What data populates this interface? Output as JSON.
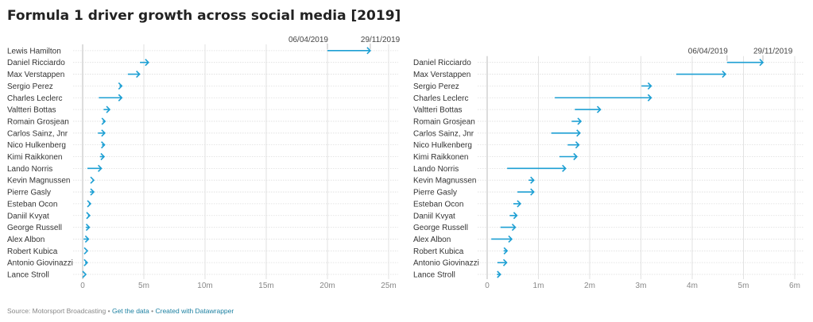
{
  "title": "Formula 1 driver growth across social media [2019]",
  "footer": {
    "source": "Source: Motorsport Broadcasting",
    "sep": " • ",
    "get_data": "Get the data",
    "created": "Created with Datawrapper"
  },
  "colors": {
    "arrow": "#1d9fd3",
    "grid": "#e2e2e2",
    "text": "#333333"
  },
  "chart_data": [
    {
      "type": "arrow",
      "xlim": [
        0,
        25
      ],
      "ticks": [
        0,
        5,
        10,
        15,
        20,
        25
      ],
      "tick_labels": [
        "0",
        "5m",
        "10m",
        "15m",
        "20m",
        "25m"
      ],
      "start_label": "06/04/2019",
      "end_label": "29/11/2019",
      "grid": true,
      "categories": [
        "Lewis Hamilton",
        "Daniel Ricciardo",
        "Max Verstappen",
        "Sergio Perez",
        "Charles Leclerc",
        "Valtteri Bottas",
        "Romain Grosjean",
        "Carlos Sainz, Jnr",
        "Nico Hulkenberg",
        "Kimi Raikkonen",
        "Lando Norris",
        "Kevin Magnussen",
        "Pierre Gasly",
        "Esteban Ocon",
        "Daniil Kvyat",
        "George Russell",
        "Alex Albon",
        "Robert Kubica",
        "Antonio Giovinazzi",
        "Lance Stroll"
      ],
      "start": [
        20.0,
        4.68,
        3.69,
        3.01,
        1.32,
        1.71,
        1.65,
        1.25,
        1.57,
        1.41,
        0.39,
        0.81,
        0.59,
        0.51,
        0.44,
        0.26,
        0.08,
        0.32,
        0.2,
        0.19
      ],
      "end": [
        23.5,
        5.38,
        4.65,
        3.2,
        3.2,
        2.21,
        1.83,
        1.81,
        1.79,
        1.75,
        1.53,
        0.91,
        0.91,
        0.65,
        0.58,
        0.55,
        0.48,
        0.39,
        0.38,
        0.26
      ]
    },
    {
      "type": "arrow",
      "xlim": [
        0,
        6
      ],
      "ticks": [
        0,
        1,
        2,
        3,
        4,
        5,
        6
      ],
      "tick_labels": [
        "0",
        "1m",
        "2m",
        "3m",
        "4m",
        "5m",
        "6m"
      ],
      "start_label": "06/04/2019",
      "end_label": "29/11/2019",
      "grid": true,
      "categories": [
        "Daniel Ricciardo",
        "Max Verstappen",
        "Sergio Perez",
        "Charles Leclerc",
        "Valtteri Bottas",
        "Romain Grosjean",
        "Carlos Sainz, Jnr",
        "Nico Hulkenberg",
        "Kimi Raikkonen",
        "Lando Norris",
        "Kevin Magnussen",
        "Pierre Gasly",
        "Esteban Ocon",
        "Daniil Kvyat",
        "George Russell",
        "Alex Albon",
        "Robert Kubica",
        "Antonio Giovinazzi",
        "Lance Stroll"
      ],
      "start": [
        4.68,
        3.69,
        3.01,
        1.32,
        1.71,
        1.65,
        1.25,
        1.57,
        1.41,
        0.39,
        0.81,
        0.59,
        0.51,
        0.44,
        0.26,
        0.08,
        0.32,
        0.2,
        0.19
      ],
      "end": [
        5.38,
        4.65,
        3.2,
        3.2,
        2.21,
        1.83,
        1.81,
        1.79,
        1.75,
        1.53,
        0.91,
        0.91,
        0.65,
        0.58,
        0.55,
        0.48,
        0.39,
        0.38,
        0.26
      ]
    }
  ]
}
